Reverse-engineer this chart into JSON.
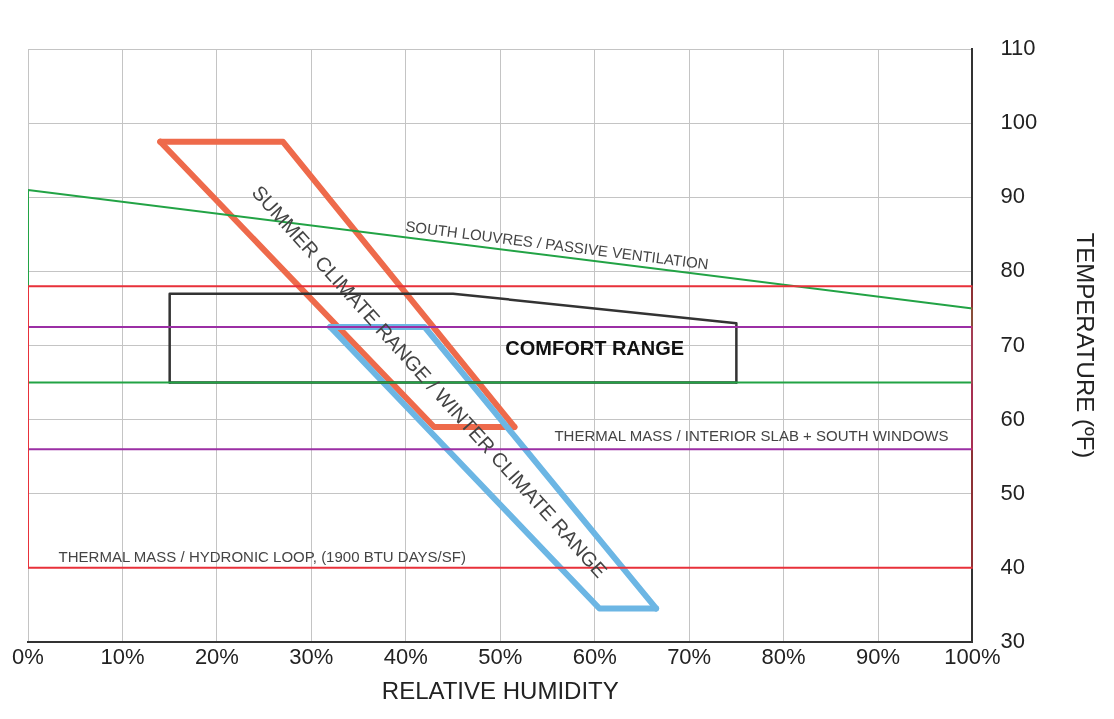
{
  "chart_data": {
    "type": "line",
    "xlabel": "RELATIVE HUMIDITY",
    "ylabel": "TEMPERATURE (ºF)",
    "xlim": [
      0,
      100
    ],
    "ylim": [
      30,
      110
    ],
    "xticks": [
      {
        "value": 0,
        "label": "0%"
      },
      {
        "value": 10,
        "label": "10%"
      },
      {
        "value": 20,
        "label": "20%"
      },
      {
        "value": 30,
        "label": "30%"
      },
      {
        "value": 40,
        "label": "40%"
      },
      {
        "value": 50,
        "label": "50%"
      },
      {
        "value": 60,
        "label": "60%"
      },
      {
        "value": 70,
        "label": "70%"
      },
      {
        "value": 80,
        "label": "80%"
      },
      {
        "value": 90,
        "label": "90%"
      },
      {
        "value": 100,
        "label": "100%"
      }
    ],
    "yticks": [
      30,
      40,
      50,
      60,
      70,
      80,
      90,
      100,
      110
    ],
    "grid": true,
    "legend": false,
    "marker": "none",
    "line_style": "solid",
    "series": [
      {
        "color": "#e8313a",
        "x": [
          0,
          0,
          100,
          100
        ],
        "values": [
          40,
          78,
          78,
          40
        ]
      },
      {
        "color": "#e8313a",
        "x": [
          0,
          100
        ],
        "values": [
          40,
          40
        ]
      },
      {
        "color": "#9b2fa5",
        "x": [
          0,
          0,
          100,
          100
        ],
        "values": [
          56,
          72.5,
          72.5,
          56
        ]
      },
      {
        "color": "#9b2fa5",
        "x": [
          0,
          100
        ],
        "values": [
          56,
          56
        ]
      },
      {
        "color": "#22a345",
        "x": [
          0,
          0,
          100,
          100
        ],
        "values": [
          65,
          91,
          75,
          65
        ]
      },
      {
        "color": "#22a345",
        "x": [
          0,
          100
        ],
        "values": [
          65,
          65
        ]
      },
      {
        "color": "#333333",
        "x": [
          15,
          15,
          45,
          75,
          75
        ],
        "values": [
          65,
          77,
          77,
          73,
          65
        ]
      },
      {
        "color": "#333333",
        "x": [
          15,
          75
        ],
        "values": [
          65,
          65
        ]
      },
      {
        "color": "#6cb6e4",
        "x": [
          32,
          42,
          66.5
        ],
        "values": [
          72.5,
          72.5,
          34.5
        ]
      },
      {
        "color": "#6cb6e4",
        "x": [
          32,
          60.5,
          66.5
        ],
        "values": [
          72.5,
          34.5,
          34.5
        ]
      },
      {
        "color": "#ee6a4b",
        "x": [
          14,
          27,
          51.5
        ],
        "values": [
          97.5,
          97.5,
          59
        ]
      },
      {
        "color": "#ee6a4b",
        "x": [
          14,
          43,
          51.5
        ],
        "values": [
          97.5,
          59,
          59
        ]
      }
    ],
    "annotations": [
      "SOUTH LOUVRES / PASSIVE VENTILATION",
      "COMFORT RANGE",
      "THERMAL MASS / INTERIOR SLAB + SOUTH WINDOWS",
      "THERMAL MASS / HYDRONIC LOOP, (1900 BTU DAYS/SF)",
      "SUMMER CLIMATE RANGE / WINTER CLIMATE RANGE"
    ]
  }
}
